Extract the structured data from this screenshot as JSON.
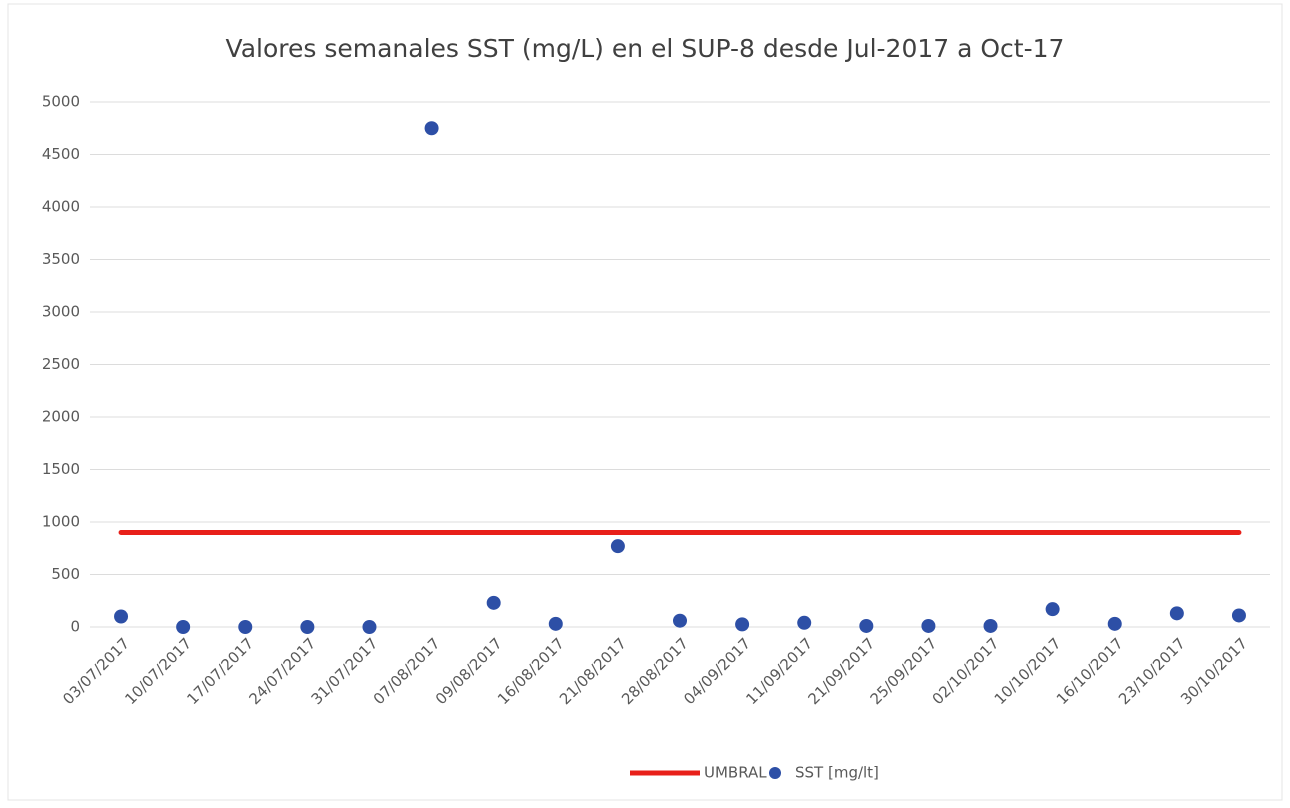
{
  "chart_data": {
    "type": "line",
    "title": "Valores semanales SST (mg/L) en el SUP-8 desde Jul-2017 a Oct-17",
    "categories": [
      "03/07/2017",
      "10/07/2017",
      "17/07/2017",
      "24/07/2017",
      "31/07/2017",
      "07/08/2017",
      "09/08/2017",
      "16/08/2017",
      "21/08/2017",
      "28/08/2017",
      "04/09/2017",
      "11/09/2017",
      "21/09/2017",
      "25/09/2017",
      "02/10/2017",
      "10/10/2017",
      "16/10/2017",
      "23/10/2017",
      "30/10/2017"
    ],
    "series": [
      {
        "name": "UMBRAL",
        "color": "#e8201a",
        "mode": "line",
        "values": [
          900,
          900,
          900,
          900,
          900,
          900,
          900,
          900,
          900,
          900,
          900,
          900,
          900,
          900,
          900,
          900,
          900,
          900,
          900
        ]
      },
      {
        "name": "SST [mg/lt]",
        "color": "#2d4fa6",
        "mode": "markers",
        "values": [
          100,
          0,
          0,
          0,
          0,
          4750,
          230,
          30,
          770,
          60,
          25,
          40,
          10,
          10,
          10,
          170,
          30,
          130,
          110
        ]
      }
    ],
    "ylim": [
      0,
      5000
    ],
    "yticks": [
      0,
      500,
      1000,
      1500,
      2000,
      2500,
      3000,
      3500,
      4000,
      4500,
      5000
    ],
    "grid": true,
    "legend": "bottom"
  }
}
